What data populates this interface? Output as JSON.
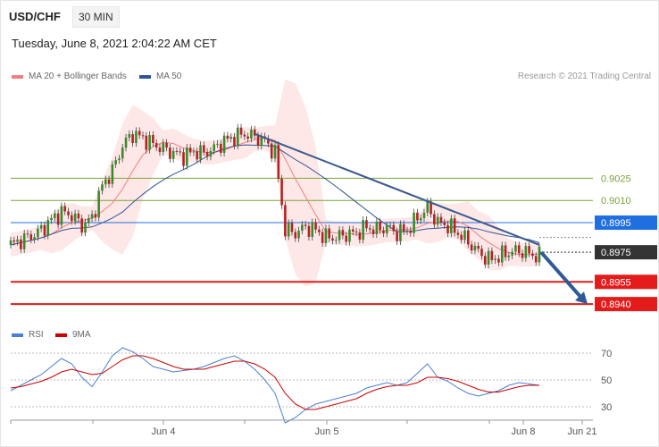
{
  "header": {
    "symbol": "USD/CHF",
    "timeframe": "30 MIN",
    "date": "Tuesday, June 8, 2021 2:04:22 AM CET",
    "copyright": "Research © 2021 Trading Central"
  },
  "legend": [
    {
      "label": "MA 20 + Bollinger Bands",
      "color": "#f08080"
    },
    {
      "label": "MA 50",
      "color": "#2f5597"
    }
  ],
  "rsi_legend": [
    {
      "label": "RSI",
      "color": "#4a7fd4"
    },
    {
      "label": "9MA",
      "color": "#cc0000"
    }
  ],
  "chart_data": [
    {
      "type": "line",
      "title": "",
      "x_ticks": [
        "Jun 4",
        "Jun 5",
        "Jun 8",
        "Jun 21"
      ],
      "ylim": [
        0.8928,
        0.9085
      ],
      "price_levels": [
        {
          "value": 0.9025,
          "label": "0.9025",
          "kind": "resistance",
          "color": "#7aa33a"
        },
        {
          "value": 0.901,
          "label": "0.9010",
          "kind": "resistance",
          "color": "#7aa33a"
        },
        {
          "value": 0.8995,
          "label": "0.8995",
          "kind": "pivot",
          "color": "#1f6fe0"
        },
        {
          "value": 0.8975,
          "label": "0.8975",
          "kind": "last",
          "color": "#333333"
        },
        {
          "value": 0.8955,
          "label": "0.8955",
          "kind": "support",
          "color": "#e31b1b"
        },
        {
          "value": 0.894,
          "label": "0.8940",
          "kind": "support",
          "color": "#e31b1b"
        }
      ],
      "series": [
        {
          "name": "MA 20 + Bollinger Bands"
        },
        {
          "name": "MA 50"
        }
      ],
      "price_path": [
        0.898,
        0.8983,
        0.8986,
        0.899,
        0.8997,
        0.9002,
        0.9,
        0.8993,
        0.8998,
        0.902,
        0.903,
        0.9047,
        0.9055,
        0.9052,
        0.9048,
        0.9045,
        0.9042,
        0.904,
        0.9043,
        0.9042,
        0.9045,
        0.905,
        0.9053,
        0.9055,
        0.9053,
        0.905,
        0.9042,
        0.899,
        0.8988,
        0.8992,
        0.899,
        0.8985,
        0.8985,
        0.8987,
        0.8988,
        0.8992,
        0.899,
        0.8992,
        0.8988,
        0.899,
        0.8998,
        0.9005,
        0.8995,
        0.8993,
        0.8988,
        0.8982,
        0.8975,
        0.897,
        0.8972,
        0.8975,
        0.8976,
        0.8974,
        0.8972
      ],
      "trendline": {
        "from": 0.9055,
        "to": 0.898
      },
      "projection": {
        "from": 0.8975,
        "to": 0.894
      }
    },
    {
      "type": "line",
      "title": "",
      "ylim": [
        20,
        80
      ],
      "y_ticks": [
        70,
        50,
        30
      ],
      "series": [
        {
          "name": "RSI",
          "values": [
            42,
            46,
            50,
            54,
            60,
            66,
            62,
            52,
            45,
            56,
            68,
            74,
            71,
            66,
            60,
            58,
            56,
            57,
            58,
            60,
            63,
            66,
            68,
            64,
            58,
            50,
            40,
            18,
            22,
            28,
            32,
            34,
            36,
            38,
            40,
            44,
            46,
            48,
            46,
            48,
            55,
            62,
            52,
            49,
            44,
            40,
            38,
            40,
            42,
            46,
            48,
            47,
            46
          ]
        },
        {
          "name": "9MA",
          "values": [
            44,
            45,
            47,
            49,
            52,
            56,
            58,
            56,
            54,
            55,
            60,
            65,
            68,
            68,
            66,
            63,
            60,
            58,
            58,
            58,
            60,
            62,
            64,
            64,
            62,
            58,
            52,
            40,
            32,
            28,
            28,
            30,
            32,
            34,
            36,
            40,
            43,
            45,
            46,
            46,
            48,
            52,
            52,
            51,
            49,
            46,
            43,
            41,
            41,
            43,
            45,
            46,
            46
          ]
        }
      ]
    }
  ]
}
